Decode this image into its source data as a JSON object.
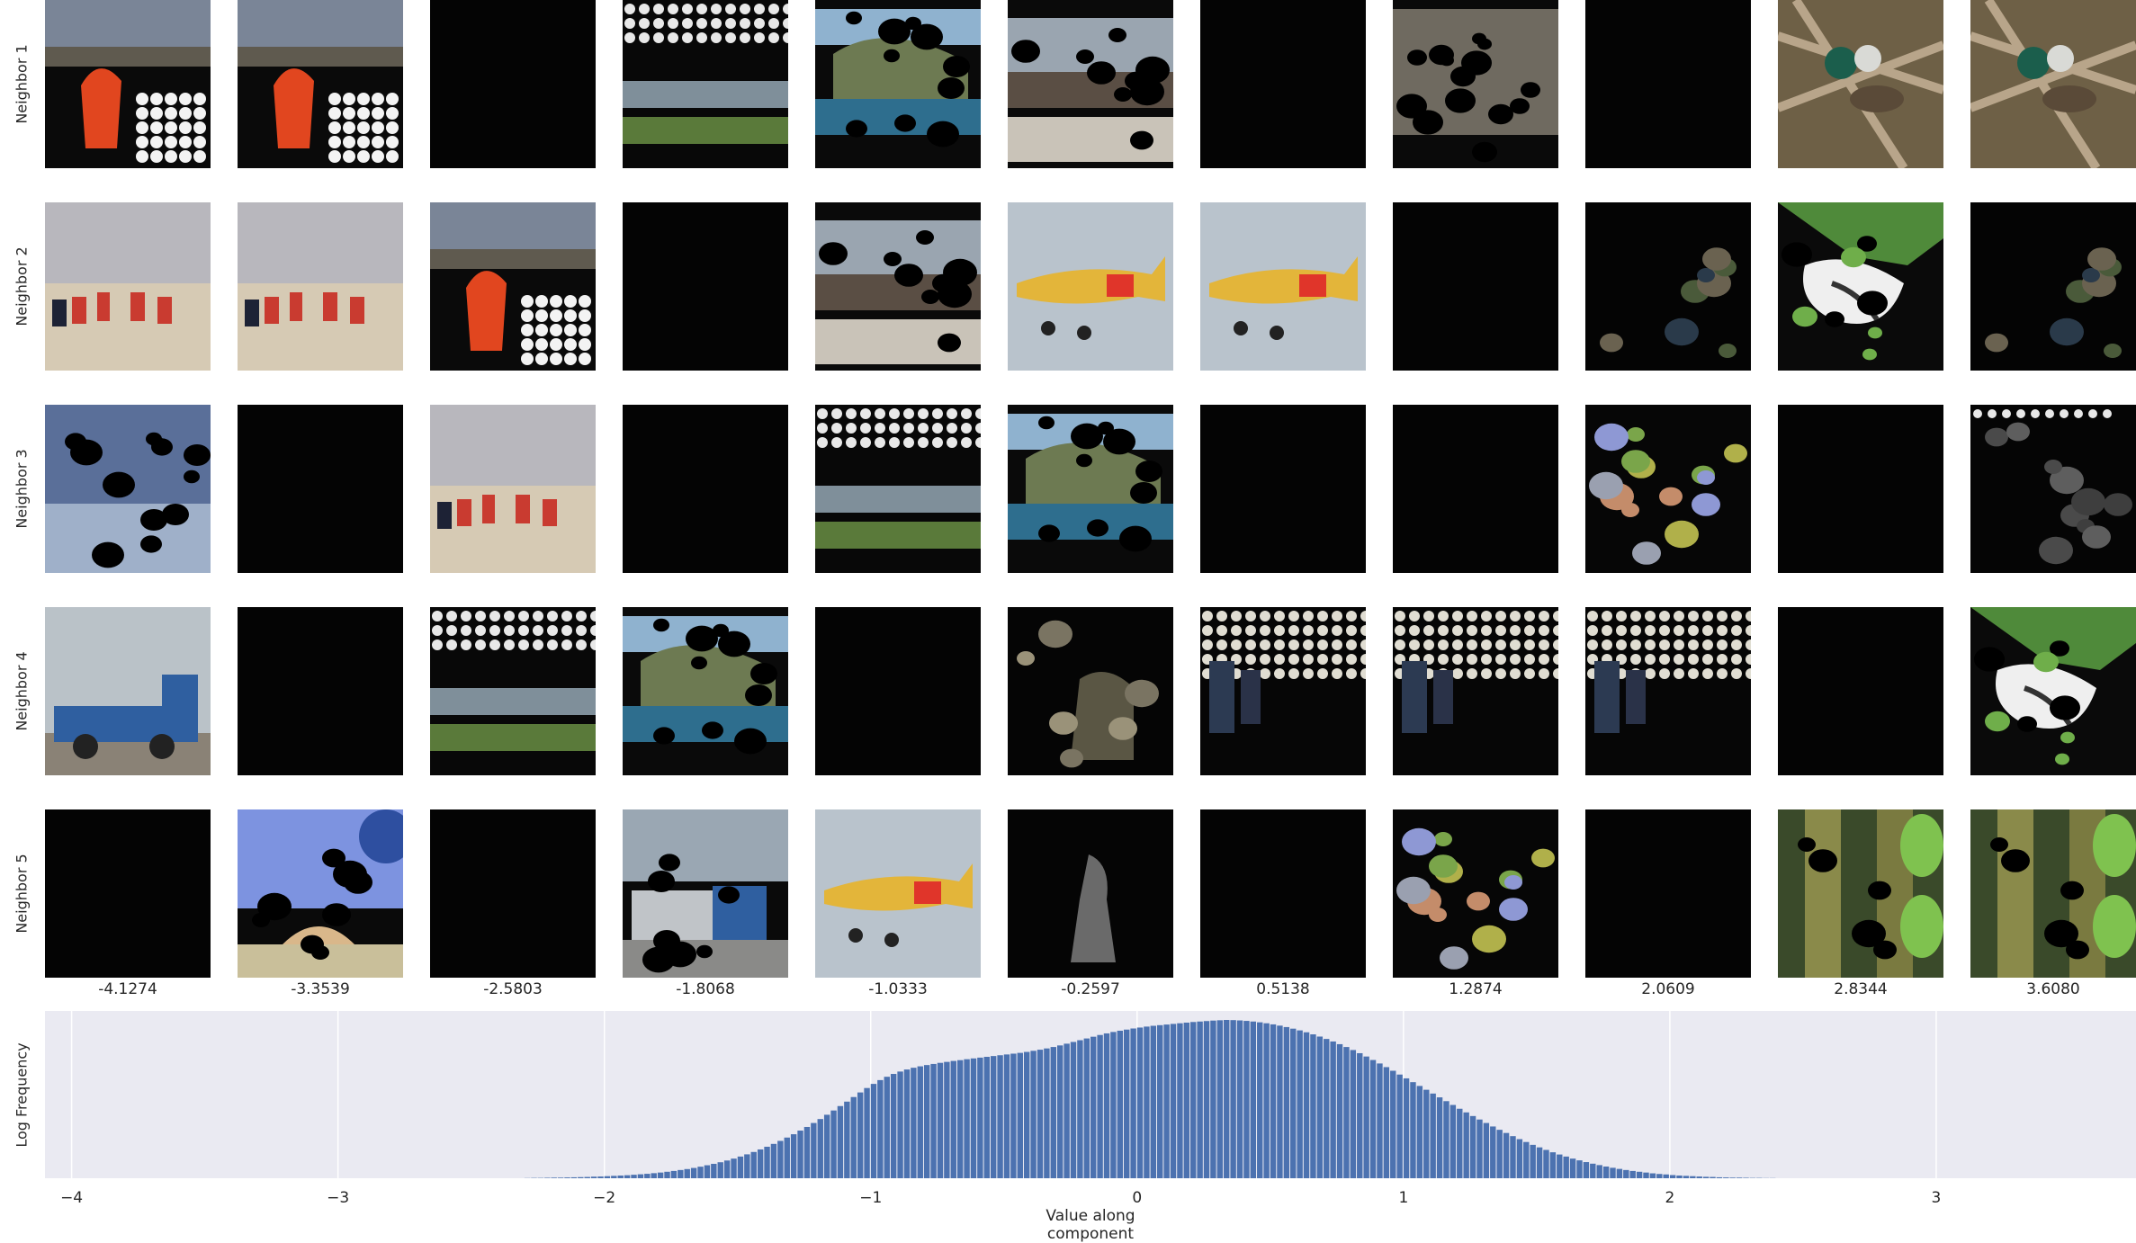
{
  "row_labels": [
    "Neighbor 1",
    "Neighbor 2",
    "Neighbor 3",
    "Neighbor 4",
    "Neighbor 5"
  ],
  "column_values": [
    "-4.1274",
    "-3.3539",
    "-2.5803",
    "-1.8068",
    "-1.0333",
    "-0.2597",
    "0.5138",
    "1.2874",
    "2.0609",
    "2.8344",
    "3.6080"
  ],
  "thumbnails": [
    [
      "red-jacket-masked",
      "red-jacket-masked",
      "dark",
      "coast-dotted",
      "coast-masked",
      "market-masked",
      "dark",
      "ground-masked",
      "dark",
      "insect",
      "insect"
    ],
    [
      "hikers-desert",
      "hikers-desert",
      "red-jacket-masked",
      "dark",
      "market-masked",
      "yellow-plane",
      "yellow-plane",
      "dark",
      "sparse-speckle",
      "butterfly-masked",
      "sparse-speckle"
    ],
    [
      "sky-masked",
      "dark",
      "hikers-desert",
      "dark",
      "coast-dotted",
      "coast-masked",
      "dark",
      "dark",
      "colored-blobs",
      "dark",
      "gray-blobs"
    ],
    [
      "blue-truck",
      "dark",
      "coast-dotted",
      "coast-masked",
      "dark",
      "soldier-faint",
      "dotted-figures",
      "dotted-figures",
      "dotted-figures",
      "dark",
      "butterfly-masked"
    ],
    [
      "dark",
      "taj-mahal-masked",
      "dark",
      "truck-masked",
      "yellow-plane",
      "ghost-figure",
      "dark",
      "colored-blobs",
      "dark",
      "jungle-masked",
      "jungle-masked"
    ]
  ],
  "palette": {
    "axes_bg": "#eaeaf2",
    "bar": "#4c72b0",
    "grid": "#ffffff"
  },
  "chart_data": {
    "type": "bar",
    "title": "",
    "xlabel": "Value along component",
    "ylabel": "Log Frequency",
    "xlim": [
      -4.1,
      3.75
    ],
    "ylim": [
      0,
      1
    ],
    "grid": true,
    "x_ticks": [
      "−4",
      "−3",
      "−2",
      "−1",
      "0",
      "1",
      "2",
      "3"
    ],
    "x_tick_values": [
      -4,
      -3,
      -2,
      -1,
      0,
      1,
      2,
      3
    ],
    "bin_start": -2.3,
    "bin_width": 0.025,
    "values": [
      0.001,
      0.002,
      0.002,
      0.003,
      0.004,
      0.004,
      0.005,
      0.006,
      0.007,
      0.008,
      0.01,
      0.011,
      0.013,
      0.015,
      0.017,
      0.019,
      0.022,
      0.025,
      0.028,
      0.032,
      0.036,
      0.041,
      0.046,
      0.052,
      0.058,
      0.065,
      0.073,
      0.082,
      0.091,
      0.101,
      0.112,
      0.124,
      0.137,
      0.151,
      0.166,
      0.182,
      0.199,
      0.217,
      0.236,
      0.257,
      0.278,
      0.301,
      0.324,
      0.349,
      0.374,
      0.401,
      0.428,
      0.456,
      0.484,
      0.513,
      0.542,
      0.57,
      0.596,
      0.62,
      0.641,
      0.659,
      0.674,
      0.687,
      0.698,
      0.707,
      0.715,
      0.722,
      0.729,
      0.735,
      0.741,
      0.746,
      0.752,
      0.757,
      0.762,
      0.767,
      0.772,
      0.777,
      0.782,
      0.787,
      0.792,
      0.798,
      0.805,
      0.812,
      0.82,
      0.829,
      0.839,
      0.85,
      0.861,
      0.872,
      0.883,
      0.894,
      0.905,
      0.915,
      0.924,
      0.932,
      0.939,
      0.946,
      0.952,
      0.958,
      0.963,
      0.967,
      0.971,
      0.975,
      0.979,
      0.983,
      0.987,
      0.99,
      0.993,
      0.996,
      0.998,
      1.0,
      0.999,
      0.997,
      0.994,
      0.99,
      0.985,
      0.979,
      0.972,
      0.964,
      0.955,
      0.945,
      0.934,
      0.922,
      0.909,
      0.895,
      0.88,
      0.864,
      0.847,
      0.829,
      0.81,
      0.79,
      0.769,
      0.747,
      0.725,
      0.702,
      0.679,
      0.655,
      0.631,
      0.607,
      0.583,
      0.559,
      0.535,
      0.511,
      0.487,
      0.463,
      0.439,
      0.416,
      0.393,
      0.371,
      0.349,
      0.327,
      0.306,
      0.286,
      0.266,
      0.247,
      0.229,
      0.211,
      0.195,
      0.179,
      0.164,
      0.15,
      0.137,
      0.124,
      0.113,
      0.102,
      0.092,
      0.083,
      0.074,
      0.066,
      0.059,
      0.052,
      0.046,
      0.041,
      0.036,
      0.031,
      0.027,
      0.024,
      0.02,
      0.017,
      0.015,
      0.013,
      0.011,
      0.009,
      0.008,
      0.006,
      0.005,
      0.004,
      0.004,
      0.003,
      0.002,
      0.002,
      0.001,
      0.001
    ]
  }
}
